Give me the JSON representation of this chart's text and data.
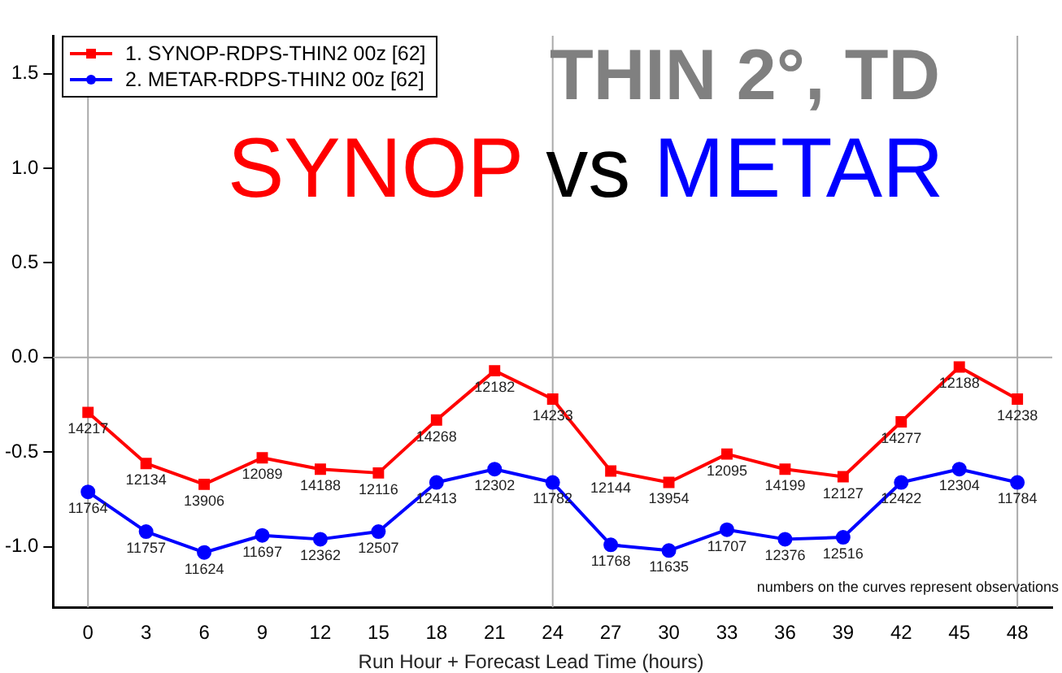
{
  "chart_data": {
    "type": "line",
    "xlabel": "Run Hour + Forecast Lead Time (hours)",
    "x": [
      0,
      3,
      6,
      9,
      12,
      15,
      18,
      21,
      24,
      27,
      30,
      33,
      36,
      39,
      42,
      45,
      48
    ],
    "xlim": [
      -1.8,
      49.8
    ],
    "xticks": [
      0,
      3,
      6,
      9,
      12,
      15,
      18,
      21,
      24,
      27,
      30,
      33,
      36,
      39,
      42,
      45,
      48
    ],
    "ylim": [
      -1.32,
      1.7
    ],
    "yticks": [
      {
        "value": -1,
        "label": "-1.0"
      },
      -0.5,
      {
        "value": 0,
        "label": "0.0"
      },
      0.5,
      {
        "value": 1,
        "label": "1.0"
      },
      1.5
    ],
    "grid": false,
    "legend": "top left",
    "line_style": "solid",
    "series": [
      {
        "name": "1. SYNOP-RDPS-THIN2 00z [62]",
        "color": "#ff0000",
        "marker": "square",
        "values": [
          -0.29,
          -0.56,
          -0.67,
          -0.53,
          -0.59,
          -0.61,
          -0.33,
          -0.07,
          -0.22,
          -0.6,
          -0.66,
          -0.51,
          -0.59,
          -0.63,
          -0.34,
          -0.05,
          -0.22
        ]
      },
      {
        "name": "2. METAR-RDPS-THIN2 00z [62]",
        "color": "#0000ff",
        "marker": "circle",
        "values": [
          -0.71,
          -0.92,
          -1.03,
          -0.94,
          -0.96,
          -0.92,
          -0.66,
          -0.59,
          -0.66,
          -0.99,
          -1.02,
          -0.91,
          -0.96,
          -0.95,
          -0.66,
          -0.59,
          -0.66
        ]
      }
    ],
    "ref_lines": [
      {
        "axis": "x",
        "value": 0,
        "color": "#aaaaaa"
      },
      {
        "axis": "x",
        "value": 24,
        "color": "#aaaaaa"
      },
      {
        "axis": "x",
        "value": 48,
        "color": "#aaaaaa"
      },
      {
        "axis": "y",
        "value": 0,
        "color": "#aaaaaa"
      }
    ],
    "annotations": [
      "THIN 2°, TD",
      "SYNOP vs METAR",
      "numbers on the curves represent observations",
      {
        "text": "14217",
        "x": 0,
        "y": -0.29
      },
      {
        "text": "12134",
        "x": 3,
        "y": -0.56
      },
      {
        "text": "13906",
        "x": 6,
        "y": -0.67
      },
      {
        "text": "12089",
        "x": 9,
        "y": -0.53
      },
      {
        "text": "14188",
        "x": 12,
        "y": -0.59
      },
      {
        "text": "12116",
        "x": 15,
        "y": -0.61
      },
      {
        "text": "14268",
        "x": 18,
        "y": -0.33
      },
      {
        "text": "12182",
        "x": 21,
        "y": -0.07
      },
      {
        "text": "14233",
        "x": 24,
        "y": -0.22
      },
      {
        "text": "12144",
        "x": 27,
        "y": -0.6
      },
      {
        "text": "13954",
        "x": 30,
        "y": -0.66
      },
      {
        "text": "12095",
        "x": 33,
        "y": -0.51
      },
      {
        "text": "14199",
        "x": 36,
        "y": -0.59
      },
      {
        "text": "12127",
        "x": 39,
        "y": -0.63
      },
      {
        "text": "14277",
        "x": 42,
        "y": -0.34
      },
      {
        "text": "12188",
        "x": 45,
        "y": -0.05
      },
      {
        "text": "14238",
        "x": 48,
        "y": -0.22
      },
      {
        "text": "11764",
        "x": 0,
        "y": -0.71
      },
      {
        "text": "11757",
        "x": 3,
        "y": -0.92
      },
      {
        "text": "11624",
        "x": 6,
        "y": -1.03
      },
      {
        "text": "11697",
        "x": 9,
        "y": -0.94
      },
      {
        "text": "12362",
        "x": 12,
        "y": -0.96
      },
      {
        "text": "12507",
        "x": 15,
        "y": -0.92
      },
      {
        "text": "12413",
        "x": 18,
        "y": -0.66
      },
      {
        "text": "12302",
        "x": 21,
        "y": -0.59
      },
      {
        "text": "11782",
        "x": 24,
        "y": -0.66
      },
      {
        "text": "11768",
        "x": 27,
        "y": -0.99
      },
      {
        "text": "11635",
        "x": 30,
        "y": -1.02
      },
      {
        "text": "11707",
        "x": 33,
        "y": -0.91
      },
      {
        "text": "12376",
        "x": 36,
        "y": -0.96
      },
      {
        "text": "12516",
        "x": 39,
        "y": -0.95
      },
      {
        "text": "12422",
        "x": 42,
        "y": -0.66
      },
      {
        "text": "12304",
        "x": 45,
        "y": -0.59
      },
      {
        "text": "11784",
        "x": 48,
        "y": -0.66
      }
    ]
  }
}
